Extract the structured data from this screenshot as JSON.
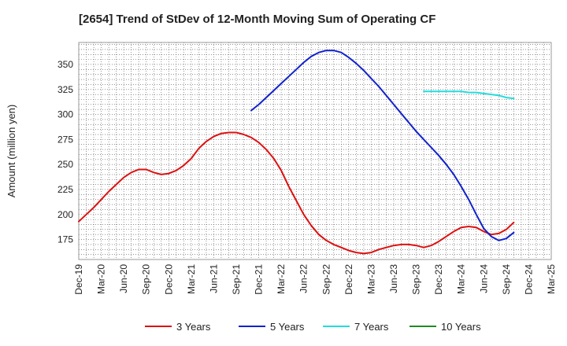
{
  "chart_data": {
    "type": "line",
    "title": "[2654]  Trend of StDev of 12-Month Moving Sum of Operating CF",
    "xlabel": "",
    "ylabel": "Amount (million yen)",
    "ylim": [
      155,
      372
    ],
    "yticks": [
      175,
      200,
      225,
      250,
      275,
      300,
      325,
      350
    ],
    "grid": true,
    "legend_position": "bottom",
    "x_categories": [
      "Dec-19",
      "Mar-20",
      "Jun-20",
      "Sep-20",
      "Dec-20",
      "Mar-21",
      "Jun-21",
      "Sep-21",
      "Dec-21",
      "Mar-22",
      "Jun-22",
      "Sep-22",
      "Dec-22",
      "Mar-23",
      "Jun-23",
      "Sep-23",
      "Dec-23",
      "Mar-24",
      "Jun-24",
      "Sep-24",
      "Dec-24",
      "Mar-25"
    ],
    "series": [
      {
        "name": "3 Years",
        "color": "#dd1111",
        "values": [
          [
            "Dec-19",
            193
          ],
          [
            "Jan-20",
            200
          ],
          [
            "Feb-20",
            207
          ],
          [
            "Mar-20",
            215
          ],
          [
            "Apr-20",
            223
          ],
          [
            "May-20",
            230
          ],
          [
            "Jun-20",
            237
          ],
          [
            "Jul-20",
            242
          ],
          [
            "Aug-20",
            245
          ],
          [
            "Sep-20",
            245
          ],
          [
            "Oct-20",
            242
          ],
          [
            "Nov-20",
            240
          ],
          [
            "Dec-20",
            241
          ],
          [
            "Jan-21",
            244
          ],
          [
            "Feb-21",
            249
          ],
          [
            "Mar-21",
            256
          ],
          [
            "Apr-21",
            266
          ],
          [
            "May-21",
            273
          ],
          [
            "Jun-21",
            278
          ],
          [
            "Jul-21",
            281
          ],
          [
            "Aug-21",
            282
          ],
          [
            "Sep-21",
            282
          ],
          [
            "Oct-21",
            280
          ],
          [
            "Nov-21",
            277
          ],
          [
            "Dec-21",
            272
          ],
          [
            "Jan-22",
            265
          ],
          [
            "Feb-22",
            256
          ],
          [
            "Mar-22",
            244
          ],
          [
            "Apr-22",
            228
          ],
          [
            "May-22",
            214
          ],
          [
            "Jun-22",
            200
          ],
          [
            "Jul-22",
            189
          ],
          [
            "Aug-22",
            180
          ],
          [
            "Sep-22",
            174
          ],
          [
            "Oct-22",
            170
          ],
          [
            "Nov-22",
            167
          ],
          [
            "Dec-22",
            164
          ],
          [
            "Jan-23",
            162
          ],
          [
            "Feb-23",
            161
          ],
          [
            "Mar-23",
            162
          ],
          [
            "Apr-23",
            165
          ],
          [
            "May-23",
            167
          ],
          [
            "Jun-23",
            169
          ],
          [
            "Jul-23",
            170
          ],
          [
            "Aug-23",
            170
          ],
          [
            "Sep-23",
            169
          ],
          [
            "Oct-23",
            167
          ],
          [
            "Nov-23",
            169
          ],
          [
            "Dec-23",
            173
          ],
          [
            "Jan-24",
            178
          ],
          [
            "Feb-24",
            183
          ],
          [
            "Mar-24",
            187
          ],
          [
            "Apr-24",
            188
          ],
          [
            "May-24",
            187
          ],
          [
            "Jun-24",
            183
          ],
          [
            "Jul-24",
            180
          ],
          [
            "Aug-24",
            181
          ],
          [
            "Sep-24",
            185
          ],
          [
            "Oct-24",
            192
          ]
        ]
      },
      {
        "name": "5 Years",
        "color": "#1122cc",
        "values": [
          [
            "Nov-21",
            304
          ],
          [
            "Dec-21",
            310
          ],
          [
            "Jan-22",
            317
          ],
          [
            "Feb-22",
            324
          ],
          [
            "Mar-22",
            331
          ],
          [
            "Apr-22",
            338
          ],
          [
            "May-22",
            345
          ],
          [
            "Jun-22",
            352
          ],
          [
            "Jul-22",
            358
          ],
          [
            "Aug-22",
            362
          ],
          [
            "Sep-22",
            364
          ],
          [
            "Oct-22",
            364
          ],
          [
            "Nov-22",
            362
          ],
          [
            "Dec-22",
            357
          ],
          [
            "Jan-23",
            351
          ],
          [
            "Feb-23",
            344
          ],
          [
            "Mar-23",
            336
          ],
          [
            "Apr-23",
            328
          ],
          [
            "May-23",
            319
          ],
          [
            "Jun-23",
            310
          ],
          [
            "Jul-23",
            301
          ],
          [
            "Aug-23",
            292
          ],
          [
            "Sep-23",
            283
          ],
          [
            "Oct-23",
            275
          ],
          [
            "Nov-23",
            267
          ],
          [
            "Dec-23",
            259
          ],
          [
            "Jan-24",
            250
          ],
          [
            "Feb-24",
            240
          ],
          [
            "Mar-24",
            228
          ],
          [
            "Apr-24",
            215
          ],
          [
            "May-24",
            200
          ],
          [
            "Jun-24",
            186
          ],
          [
            "Jul-24",
            178
          ],
          [
            "Aug-24",
            174
          ],
          [
            "Sep-24",
            176
          ],
          [
            "Oct-24",
            182
          ]
        ]
      },
      {
        "name": "7 Years",
        "color": "#22dddd",
        "values": [
          [
            "Oct-23",
            323
          ],
          [
            "Nov-23",
            323
          ],
          [
            "Dec-23",
            323
          ],
          [
            "Jan-24",
            323
          ],
          [
            "Feb-24",
            323
          ],
          [
            "Mar-24",
            323
          ],
          [
            "Apr-24",
            322
          ],
          [
            "May-24",
            322
          ],
          [
            "Jun-24",
            321
          ],
          [
            "Jul-24",
            320
          ],
          [
            "Aug-24",
            319
          ],
          [
            "Sep-24",
            317
          ],
          [
            "Oct-24",
            316
          ]
        ]
      },
      {
        "name": "10 Years",
        "color": "#228822",
        "values": []
      }
    ]
  }
}
